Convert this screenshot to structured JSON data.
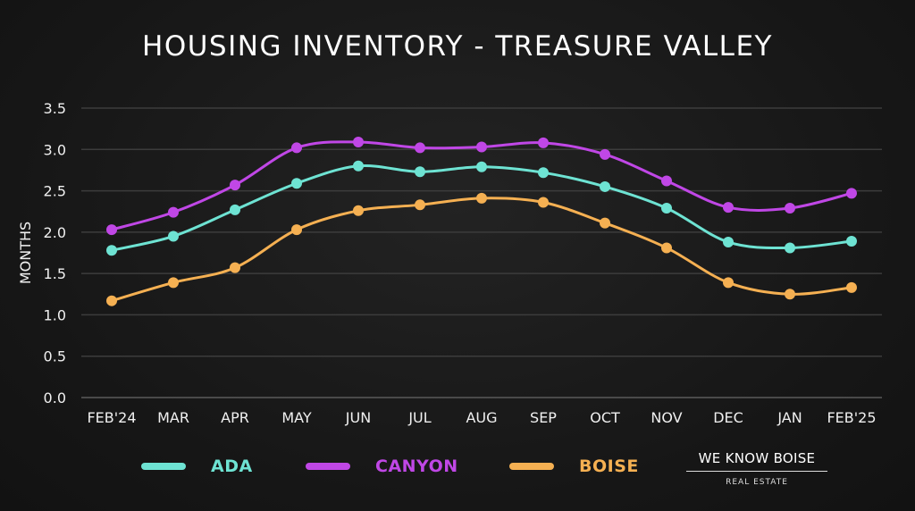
{
  "chart_data": {
    "type": "line",
    "title": "HOUSING INVENTORY - TREASURE VALLEY",
    "xlabel": "",
    "ylabel": "MONTHS",
    "ylim": [
      0,
      3.5
    ],
    "yticks": [
      "0.0",
      "0.5",
      "1.0",
      "1.5",
      "2.0",
      "2.5",
      "3.0",
      "3.5"
    ],
    "grid": true,
    "legend_placement": "bottom",
    "categories": [
      "FEB'24",
      "MAR",
      "APR",
      "MAY",
      "JUN",
      "JUL",
      "AUG",
      "SEP",
      "OCT",
      "NOV",
      "DEC",
      "JAN",
      "FEB'25"
    ],
    "series": [
      {
        "name": "ADA",
        "color": "#6ee3d3",
        "values": [
          1.78,
          1.95,
          2.27,
          2.59,
          2.8,
          2.73,
          2.79,
          2.72,
          2.55,
          2.29,
          1.88,
          1.81,
          1.89
        ]
      },
      {
        "name": "CANYON",
        "color": "#c047e6",
        "values": [
          2.03,
          2.24,
          2.57,
          3.02,
          3.09,
          3.02,
          3.03,
          3.08,
          2.94,
          2.62,
          2.3,
          2.29,
          2.47
        ]
      },
      {
        "name": "BOISE",
        "color": "#f5b052",
        "values": [
          1.17,
          1.39,
          1.57,
          2.03,
          2.26,
          2.33,
          2.41,
          2.36,
          2.11,
          1.81,
          1.39,
          1.25,
          1.33
        ]
      }
    ]
  },
  "logo": {
    "line1": "WE KNOW BOISE",
    "line2": "REAL ESTATE"
  }
}
